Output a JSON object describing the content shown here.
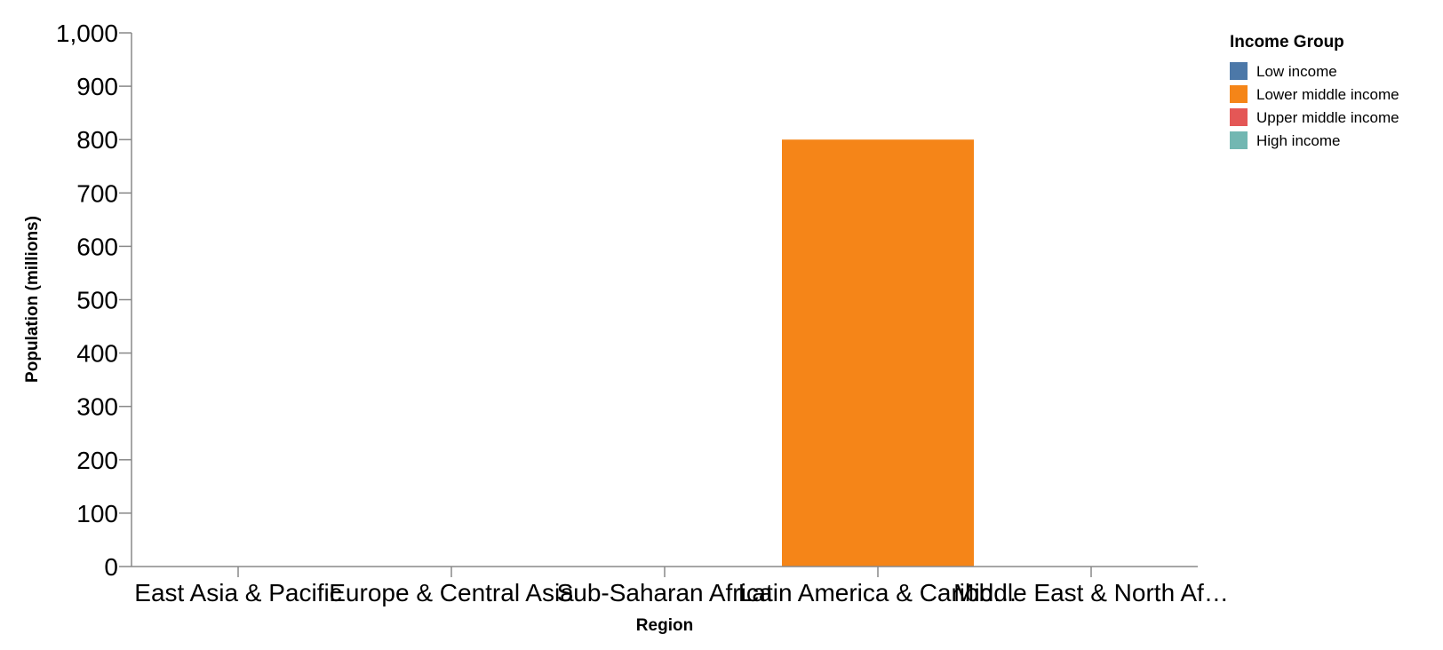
{
  "chart_data": {
    "type": "bar",
    "xlabel": "Region",
    "ylabel": "Population (millions)",
    "ylim": [
      0,
      1000
    ],
    "yticks": [
      0,
      100,
      200,
      300,
      400,
      500,
      600,
      700,
      800,
      900,
      1000
    ],
    "ytick_labels": [
      "0",
      "100",
      "200",
      "300",
      "400",
      "500",
      "600",
      "700",
      "800",
      "900",
      "1,000"
    ],
    "categories": [
      "East Asia & Pacific",
      "Europe & Central Asia",
      "Sub-Saharan Africa",
      "Latin America & Caribb…",
      "Middle East & North Af…"
    ],
    "series": [
      {
        "name": "Low income",
        "color": "#4c78a8",
        "values": [
          0,
          0,
          0,
          0,
          0
        ]
      },
      {
        "name": "Lower middle income",
        "color": "#f58518",
        "values": [
          0,
          0,
          0,
          800,
          0
        ]
      },
      {
        "name": "Upper middle income",
        "color": "#e45756",
        "values": [
          0,
          0,
          0,
          0,
          0
        ]
      },
      {
        "name": "High income",
        "color": "#72b7b2",
        "values": [
          0,
          0,
          0,
          0,
          0
        ]
      }
    ],
    "legend": {
      "title": "Income Group",
      "placement": "top-right"
    },
    "grid": false
  }
}
